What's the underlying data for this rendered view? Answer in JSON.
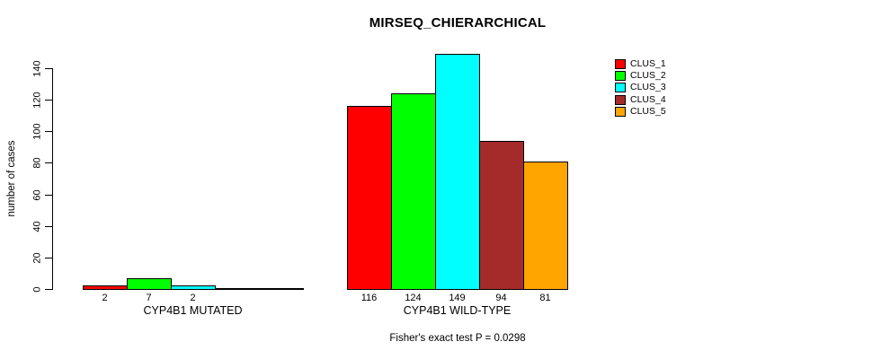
{
  "chart_data": {
    "type": "bar",
    "title": "MIRSEQ_CHIERARCHICAL",
    "ylabel": "number of cases",
    "xlabel": "",
    "ylim": [
      0,
      150
    ],
    "yticks": [
      0,
      20,
      40,
      60,
      80,
      100,
      120,
      140
    ],
    "grid": false,
    "legend_position": "top-right-outside",
    "categories": [
      "CYP4B1 MUTATED",
      "CYP4B1 WILD-TYPE"
    ],
    "series": [
      {
        "name": "CLUS_1",
        "color": "#FF0000",
        "values": [
          2,
          116
        ]
      },
      {
        "name": "CLUS_2",
        "color": "#00FF00",
        "values": [
          7,
          124
        ]
      },
      {
        "name": "CLUS_3",
        "color": "#00FFFF",
        "values": [
          2,
          149
        ]
      },
      {
        "name": "CLUS_4",
        "color": "#A52A2A",
        "values": [
          0,
          94
        ]
      },
      {
        "name": "CLUS_5",
        "color": "#FFA500",
        "values": [
          0,
          81
        ]
      }
    ],
    "bar_value_labels": {
      "CYP4B1 MUTATED": [
        "2",
        "7",
        "2",
        "",
        ""
      ],
      "CYP4B1 WILD-TYPE": [
        "116",
        "124",
        "149",
        "94",
        "81"
      ]
    },
    "annotation": "Fisher's exact test P = 0.0298"
  }
}
